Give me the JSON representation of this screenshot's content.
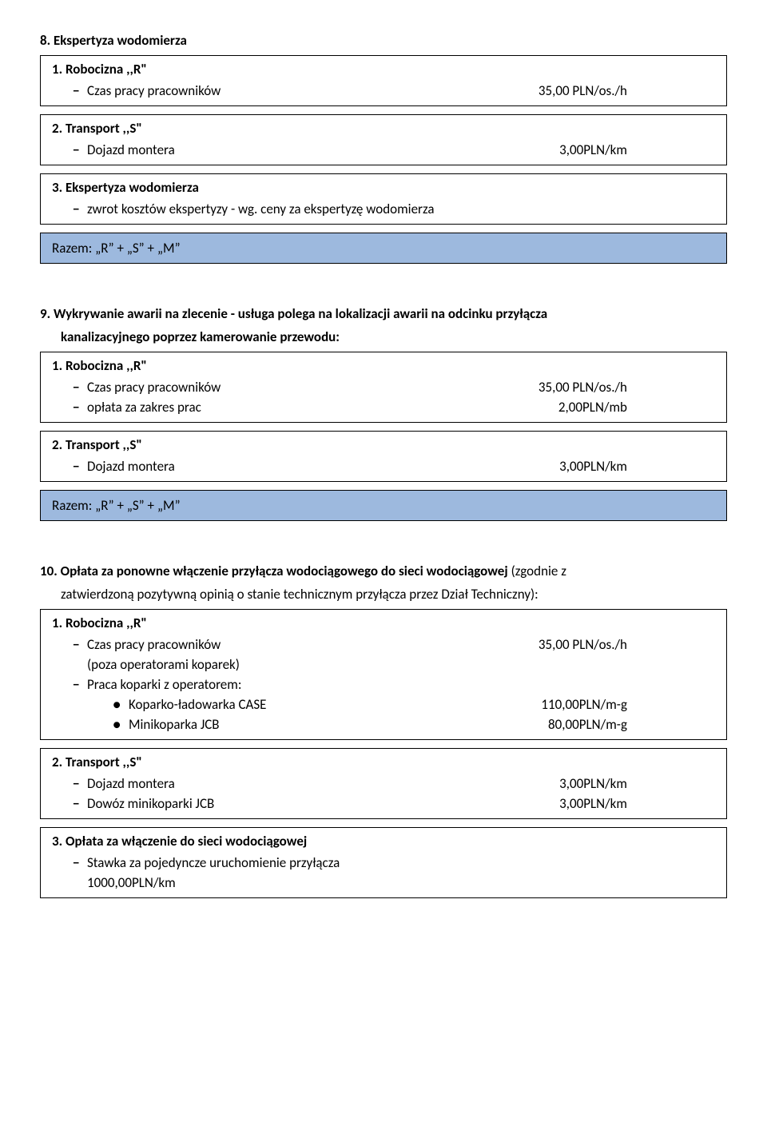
{
  "colors": {
    "border": "#000000",
    "razem_bg": "#9db9de",
    "text": "#000000",
    "page_bg": "#ffffff"
  },
  "fontsize": {
    "body": 17
  },
  "s8": {
    "title": "8.   Ekspertyza wodomierza",
    "b1": {
      "title": "1. Robocizna ,,R\"",
      "r1_label": "Czas pracy pracowników",
      "r1_value": "35,00 PLN/os./h"
    },
    "b2": {
      "title": "2. Transport ,,S\"",
      "r1_label": "Dojazd montera",
      "r1_value": "3,00PLN/km"
    },
    "b3": {
      "title": "3. Ekspertyza wodomierza",
      "r1_label": "zwrot kosztów ekspertyzy - wg. ceny za ekspertyzę wodomierza"
    },
    "razem": "Razem: „R” + „S” + „M”"
  },
  "s9": {
    "title_bold": "9.   Wykrywanie awarii na zlecenie - usługa polega na lokalizacji awarii na odcinku przyłącza",
    "title_cont": "kanalizacyjnego poprzez kamerowanie przewodu:",
    "b1": {
      "title": "1. Robocizna ,,R\"",
      "r1_label": "Czas pracy pracowników",
      "r1_value": "35,00 PLN/os./h",
      "r2_label": "opłata za zakres prac",
      "r2_value": "2,00PLN/mb"
    },
    "b2": {
      "title": "2. Transport ,,S\"",
      "r1_label": "Dojazd montera",
      "r1_value": "3,00PLN/km"
    },
    "razem": "Razem: „R” + „S” + „M”"
  },
  "s10": {
    "title_bold": "10. Opłata za ponowne włączenie przyłącza wodociągowego do sieci wodociągowej ",
    "title_norm": "(zgodnie z",
    "title_cont": "zatwierdzoną pozytywną opinią o stanie technicznym przyłącza przez Dział Techniczny):",
    "b1": {
      "title": "1. Robocizna ,,R\"",
      "r1_label": "Czas pracy pracowników",
      "r1_value": "35,00 PLN/os./h",
      "r1_sub": "(poza operatorami koparek)",
      "r2_label": "Praca koparki z operatorem:",
      "bul1_label": "Koparko-ładowarka CASE",
      "bul1_value": "110,00PLN/m-g",
      "bul2_label": "Minikoparka JCB",
      "bul2_value": "80,00PLN/m-g"
    },
    "b2": {
      "title": "2. Transport ,,S\"",
      "r1_label": "Dojazd montera",
      "r1_value": "3,00PLN/km",
      "r2_label": "Dowóz minikoparki JCB",
      "r2_value": "3,00PLN/km"
    },
    "b3": {
      "title": "3. Opłata za włączenie do sieci wodociągowej",
      "r1_label": "Stawka za pojedyncze uruchomienie przyłącza",
      "r1_sub": "1000,00PLN/km"
    }
  }
}
